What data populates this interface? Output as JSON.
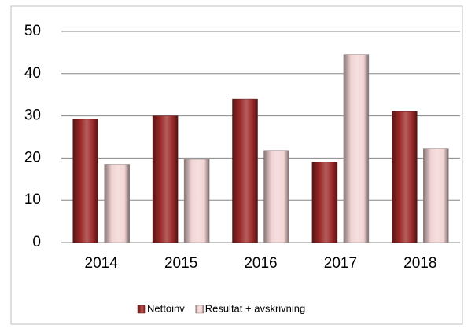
{
  "chart_data": {
    "type": "bar",
    "categories": [
      "2014",
      "2015",
      "2016",
      "2017",
      "2018"
    ],
    "series": [
      {
        "name": "Nettoinv",
        "color": "#9b2828",
        "values": [
          29.2,
          30,
          34,
          19,
          31
        ]
      },
      {
        "name": "Resultat + avskrivning",
        "color": "#f2d4d4",
        "values": [
          18.5,
          19.7,
          21.8,
          44.5,
          22.2
        ]
      }
    ],
    "ylim": [
      0,
      50
    ],
    "yticks": [
      0,
      10,
      20,
      30,
      40,
      50
    ],
    "grid": true,
    "legend": "bottom"
  }
}
